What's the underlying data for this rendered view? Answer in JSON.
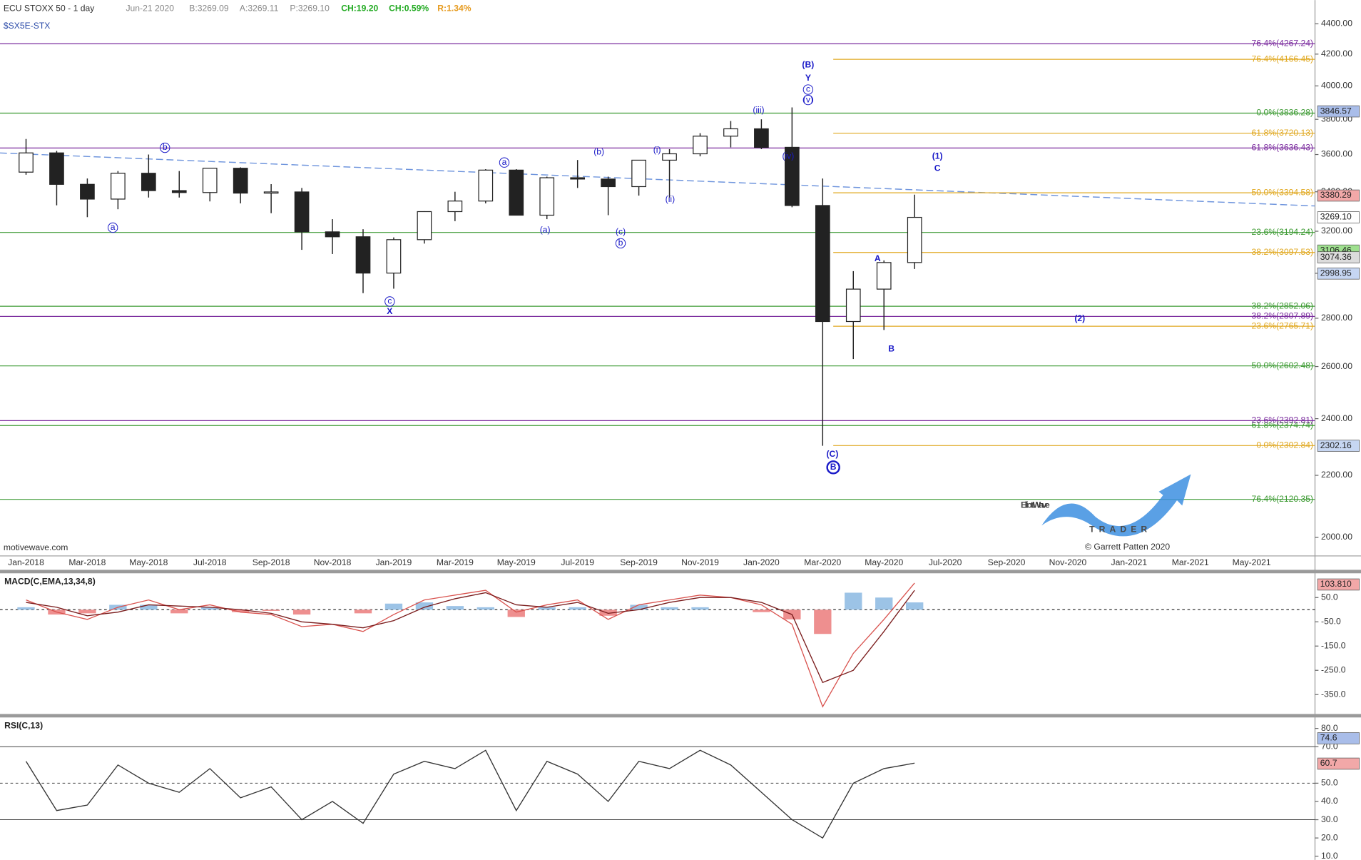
{
  "header": {
    "instrument": "ECU STOXX 50 - 1 day",
    "date": "Jun-21 2020",
    "bid": "B:3269.09",
    "ask": "A:3269.11",
    "price": "P:3269.10",
    "change": "CH:19.20",
    "change_pct": "CH:0.59%",
    "range": "R:1.34%",
    "symbol": "$SX5E-STX"
  },
  "watermark": "motivewave.com",
  "logo": {
    "brand1": "Elliott",
    "brand2": "Wave",
    "tagline": "TRADER",
    "credit": "© Garrett Patten 2020"
  },
  "chart_data": [
    {
      "type": "candlestick",
      "color": "#222222",
      "log_scale": true,
      "categories": [
        "Jan-2018",
        null,
        "Mar-2018",
        null,
        "May-2018",
        null,
        "Jul-2018",
        null,
        "Sep-2018",
        null,
        "Nov-2018",
        null,
        "Jan-2019",
        null,
        "Mar-2019",
        null,
        "May-2019",
        null,
        "Jul-2019",
        null,
        "Sep-2019",
        null,
        "Nov-2019",
        null,
        "Jan-2020",
        null,
        "Mar-2020",
        null,
        "May-2020",
        null,
        "Jul-2020",
        null,
        "Sep-2020",
        null,
        "Nov-2020",
        null,
        "Jan-2021",
        null,
        "Mar-2021",
        null,
        "May-2021",
        null
      ],
      "open": [
        3504,
        3609,
        3439,
        3362,
        3498,
        3406,
        3396,
        3525,
        3393,
        3399,
        3197,
        3173,
        3001,
        3159,
        3298,
        3352,
        3515,
        3280,
        3474,
        3467,
        3427,
        3569,
        3604,
        3703,
        3745,
        3640,
        3329,
        2786,
        2928,
        3050,
        null,
        null,
        null,
        null,
        null,
        null,
        null,
        null,
        null,
        null,
        null,
        null
      ],
      "high": [
        3687,
        3620,
        3470,
        3510,
        3600,
        3510,
        3520,
        3530,
        3440,
        3420,
        3260,
        3210,
        3170,
        3300,
        3400,
        3520,
        3520,
        3480,
        3570,
        3480,
        3560,
        3630,
        3720,
        3790,
        3800,
        3870,
        3470,
        3010,
        3060,
        3385,
        null,
        null,
        null,
        null,
        null,
        null,
        null,
        null,
        null,
        null,
        null,
        null
      ],
      "low": [
        3490,
        3330,
        3270,
        3310,
        3370,
        3370,
        3350,
        3340,
        3290,
        3110,
        3090,
        2910,
        2930,
        3140,
        3250,
        3340,
        3280,
        3260,
        3420,
        3280,
        3380,
        3370,
        3590,
        3640,
        3630,
        3320,
        2302,
        2630,
        2750,
        3020,
        null,
        null,
        null,
        null,
        null,
        null,
        null,
        null,
        null,
        null,
        null,
        null
      ],
      "close": [
        3609,
        3439,
        3362,
        3498,
        3406,
        3396,
        3525,
        3393,
        3399,
        3197,
        3173,
        3001,
        3159,
        3298,
        3352,
        3515,
        3280,
        3474,
        3467,
        3427,
        3569,
        3604,
        3703,
        3745,
        3640,
        3329,
        2786,
        2928,
        3050,
        3269,
        null,
        null,
        null,
        null,
        null,
        null,
        null,
        null,
        null,
        null,
        null,
        null
      ],
      "ylim": [
        1944,
        4563
      ],
      "yticks": [
        {
          "value": 2000,
          "label": "2000.00"
        },
        {
          "value": 2200,
          "label": "2200.00"
        },
        {
          "value": 2400,
          "label": "2400.00"
        },
        {
          "value": 2600,
          "label": "2600.00"
        },
        {
          "value": 2800,
          "label": "2800.00"
        },
        {
          "value": 3000,
          "label": "3000.00"
        },
        {
          "value": 3200,
          "label": "3200.00"
        },
        {
          "value": 3400,
          "label": "3400.00"
        },
        {
          "value": 3600,
          "label": "3600.00"
        },
        {
          "value": 3800,
          "label": "3800.00"
        },
        {
          "value": 4000,
          "label": "4000.00"
        },
        {
          "value": 4200,
          "label": "4200.00"
        },
        {
          "value": 4400,
          "label": "4400.00"
        }
      ],
      "fib_groups": [
        {
          "color": "#3c9a32",
          "levels": [
            {
              "value": 3836.28,
              "label": "0.0%(3836.28)"
            },
            {
              "value": 3194.24,
              "label": "23.6%(3194.24)"
            },
            {
              "value": 2852.06,
              "label": "38.2%(2852.06)"
            },
            {
              "value": 2602.48,
              "label": "50.0%(2602.48)"
            },
            {
              "value": 2374.74,
              "label": "61.8%(2374.74)"
            },
            {
              "value": 2120.35,
              "label": "76.4%(2120.35)"
            }
          ]
        },
        {
          "color": "#7b2c9e",
          "levels": [
            {
              "value": 4267.24,
              "label": "76.4%(4267.24)"
            },
            {
              "value": 3636.43,
              "label": "61.8%(3636.43)"
            },
            {
              "value": 2807.89,
              "label": "38.2%(2807.89)"
            },
            {
              "value": 2392.81,
              "label": "23.6%(2392.81)"
            }
          ]
        },
        {
          "color": "#e0a820",
          "levels": [
            {
              "value": 4166.45,
              "label": "76.4%(4166.45)"
            },
            {
              "value": 3720.13,
              "label": "61.8%(3720.13)"
            },
            {
              "value": 3394.58,
              "label": "50.0%(3394.58)"
            },
            {
              "value": 3097.53,
              "label": "38.2%(3097.53)"
            },
            {
              "value": 2765.71,
              "label": "23.6%(2765.71)"
            },
            {
              "value": 2302.84,
              "label": "0.0%(2302.84)"
            }
          ]
        }
      ],
      "price_markers": [
        {
          "value": 3846.57,
          "label": "3846.57",
          "color": "#a9bde9"
        },
        {
          "value": 3380.29,
          "label": "3380.29",
          "color": "#f2a8a8"
        },
        {
          "value": 3269.1,
          "label": "3269.10",
          "color": "#ffffff"
        },
        {
          "value": 3106.46,
          "label": "3106.46",
          "color": "#9fe08f"
        },
        {
          "value": 3074.36,
          "label": "3074.36",
          "color": "#dcdcdc"
        },
        {
          "value": 2998.95,
          "label": "2998.95",
          "color": "#c6d6f2"
        },
        {
          "value": 2302.16,
          "label": "2302.16",
          "color": "#c6d6f2"
        }
      ],
      "annotations": [
        "(B)",
        "Y",
        "c",
        "(v)",
        "(iii)",
        "(iv)",
        "(i)",
        "(ii)",
        "(b)",
        "(a)",
        "(c)",
        "b",
        "a",
        "b",
        "a",
        "c",
        "X",
        "(1)",
        "C",
        "A",
        "B",
        "(2)",
        "(C)",
        "B"
      ]
    },
    {
      "type": "macd",
      "title": "MACD(C,EMA,13,34,8)",
      "ylim": [
        -430,
        150
      ],
      "yticks": [
        {
          "value": 50,
          "label": "50.0"
        },
        {
          "value": -50,
          "label": "-50.0"
        },
        {
          "value": -150,
          "label": "-150.0"
        },
        {
          "value": -250,
          "label": "-250.0"
        },
        {
          "value": -350,
          "label": "-350.0"
        }
      ],
      "series": [
        {
          "color": "#d9534f",
          "values": [
            40,
            -10,
            -40,
            10,
            40,
            0,
            20,
            -10,
            -20,
            -70,
            -60,
            -90,
            -20,
            40,
            60,
            80,
            -10,
            20,
            40,
            -40,
            20,
            40,
            60,
            50,
            20,
            -60,
            -400,
            -180,
            -40,
            110,
            null,
            null,
            null,
            null,
            null,
            null,
            null,
            null,
            null,
            null,
            null,
            null
          ]
        },
        {
          "color": "#7a1c1c",
          "values": [
            30,
            10,
            -25,
            -10,
            20,
            15,
            10,
            0,
            -15,
            -50,
            -60,
            -75,
            -45,
            10,
            45,
            70,
            20,
            10,
            30,
            -15,
            0,
            30,
            50,
            50,
            30,
            -20,
            -300,
            -250,
            -90,
            80,
            null,
            null,
            null,
            null,
            null,
            null,
            null,
            null,
            null,
            null,
            null,
            null
          ]
        }
      ],
      "histogram": {
        "up_color": "#9cc3e6",
        "down_color": "#ee8f8f",
        "values": [
          10,
          -20,
          -15,
          20,
          20,
          -15,
          10,
          -10,
          -5,
          -20,
          0,
          -15,
          25,
          30,
          15,
          10,
          -30,
          10,
          10,
          -25,
          20,
          10,
          10,
          0,
          -10,
          -40,
          -100,
          70,
          50,
          30,
          null,
          null,
          null,
          null,
          null,
          null,
          null,
          null,
          null,
          null,
          null,
          null
        ]
      },
      "markers": [
        {
          "value": 103.81,
          "label": "103.810",
          "color": "#f2a8a8"
        }
      ]
    },
    {
      "type": "rsi",
      "title": "RSI(C,13)",
      "ylim": [
        8,
        86
      ],
      "yticks": [
        {
          "value": 10,
          "label": "10.0"
        },
        {
          "value": 20,
          "label": "20.0"
        },
        {
          "value": 30,
          "label": "30.0"
        },
        {
          "value": 40,
          "label": "40.0"
        },
        {
          "value": 50,
          "label": "50.0"
        },
        {
          "value": 70,
          "label": "70.0"
        },
        {
          "value": 80,
          "label": "80.0"
        }
      ],
      "levels": [
        70,
        50,
        30
      ],
      "series": [
        {
          "color": "#333333",
          "values": [
            62,
            35,
            38,
            60,
            50,
            45,
            58,
            42,
            48,
            30,
            40,
            28,
            55,
            62,
            58,
            68,
            35,
            62,
            55,
            40,
            62,
            58,
            68,
            60,
            45,
            30,
            20,
            50,
            58,
            61,
            null,
            null,
            null,
            null,
            null,
            null,
            null,
            null,
            null,
            null,
            null,
            null
          ]
        }
      ],
      "markers": [
        {
          "value": 74.6,
          "color": "#a9bde9"
        },
        {
          "value": 60.7,
          "color": "#f2a8a8"
        }
      ]
    }
  ]
}
